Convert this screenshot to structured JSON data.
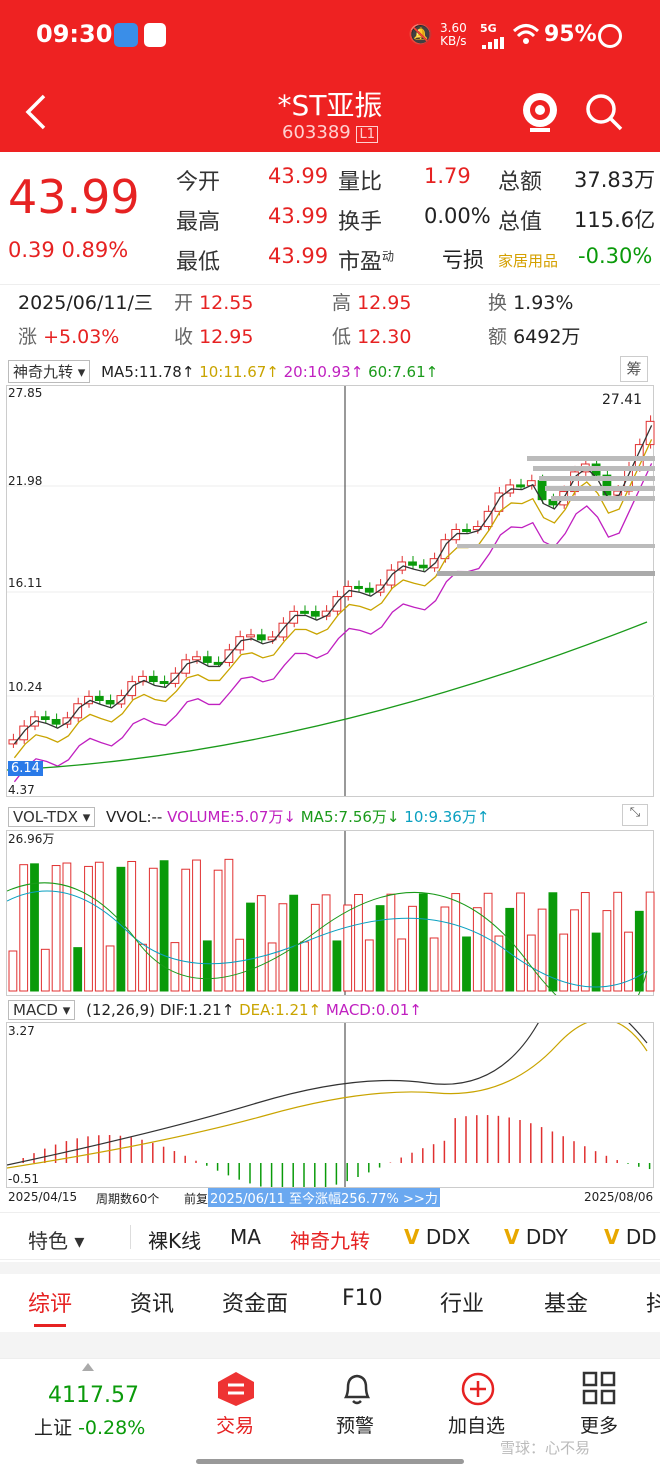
{
  "status": {
    "time": "09:30",
    "speed": "3.60",
    "speed_unit": "KB/s",
    "net": "5G",
    "battery": "95%"
  },
  "header": {
    "title": "*ST亚振",
    "code": "603389",
    "badge": "L1"
  },
  "quote": {
    "price": "43.99",
    "change": "0.39",
    "change_pct": "0.89%",
    "rows": [
      [
        {
          "l": "今开",
          "v": "43.99",
          "c": "red"
        },
        {
          "l": "量比",
          "v": "1.79",
          "c": "red"
        },
        {
          "l": "总额",
          "v": "37.83万",
          "c": "dark"
        }
      ],
      [
        {
          "l": "最高",
          "v": "43.99",
          "c": "red"
        },
        {
          "l": "换手",
          "v": "0.00%",
          "c": "dark"
        },
        {
          "l": "总值",
          "v": "115.6亿",
          "c": "dark"
        }
      ],
      [
        {
          "l": "最低",
          "v": "43.99",
          "c": "red"
        },
        {
          "l": "市盈",
          "sup": "动",
          "v": "亏损",
          "c": "dark"
        },
        {
          "l": "家居用品",
          "v": "-0.30%",
          "c": "green"
        }
      ]
    ]
  },
  "day": {
    "date": "2025/06/11/三",
    "open_l": "开",
    "open": "12.55",
    "high_l": "高",
    "high": "12.95",
    "turn_l": "换",
    "turn": "1.93%",
    "chg_l": "涨",
    "chg": "+5.03%",
    "close_l": "收",
    "close": "12.95",
    "low_l": "低",
    "low": "12.30",
    "amt_l": "额",
    "amt": "6492万"
  },
  "kline": {
    "selector": "神奇九转",
    "ma5": "MA5:11.78↑",
    "ma10": "10:11.67↑",
    "ma20": "20:10.93↑",
    "ma60": "60:7.61↑",
    "corner": "筹",
    "y_labels": [
      "27.85",
      "21.98",
      "16.11",
      "10.24",
      "4.37"
    ],
    "max_label": "27.41",
    "min_label": "6.14"
  },
  "volume": {
    "selector": "VOL-TDX",
    "vvol": "VVOL:--",
    "volume": "VOLUME:5.07万↓",
    "ma5": "MA5:7.56万↓",
    "ma10": "10:9.36万↑",
    "top": "26.96万"
  },
  "macd": {
    "selector": "MACD",
    "params": "(12,26,9)",
    "dif": "DIF:1.21↑",
    "dea": "DEA:1.21↑",
    "macd": "MACD:0.01↑",
    "top": "3.27",
    "bottom": "-0.51"
  },
  "axis": {
    "start": "2025/04/15",
    "period": "周期数60个",
    "prev": "前复",
    "highlight": "2025/06/11 至今涨幅256.77% >>力",
    "end": "2025/08/06"
  },
  "indicator_tabs": {
    "feature": "特色",
    "items": [
      "裸K线",
      "MA",
      "神奇九转",
      "DDX",
      "DDY",
      "DD"
    ]
  },
  "tabs": [
    "综评",
    "资讯",
    "资金面",
    "F10",
    "行业",
    "基金",
    "抖"
  ],
  "bottom": {
    "index_val": "4117.57",
    "index_name": "上证",
    "index_chg": "-0.28%",
    "nav": [
      "交易",
      "预警",
      "加自选",
      "更多"
    ],
    "watermark": "雪球：心不易"
  }
}
